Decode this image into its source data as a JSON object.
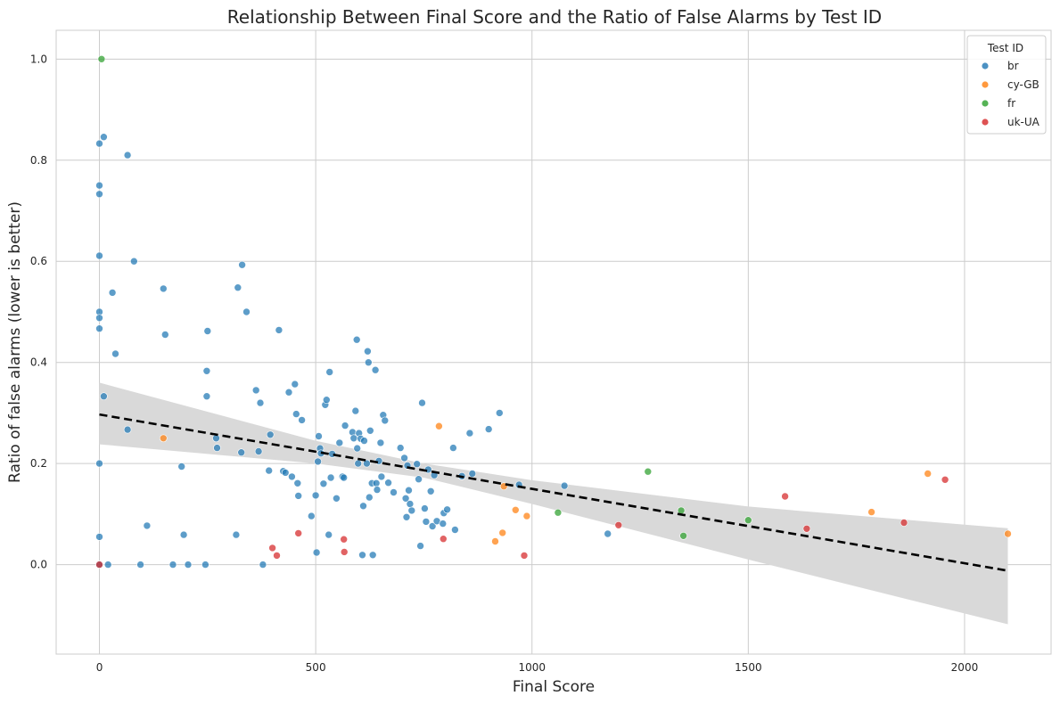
{
  "chart_data": {
    "type": "scatter",
    "title": "Relationship Between Final Score and the Ratio of False Alarms by Test ID",
    "xlabel": "Final Score",
    "ylabel": "Ratio of false alarms (lower is better)",
    "xlim": [
      -100,
      2200
    ],
    "ylim": [
      -0.177,
      1.057
    ],
    "xticks": [
      0,
      500,
      1000,
      1500,
      2000
    ],
    "yticks": [
      0.0,
      0.2,
      0.4,
      0.6,
      0.8,
      1.0
    ],
    "xtick_labels": [
      "0",
      "500",
      "1000",
      "1500",
      "2000"
    ],
    "ytick_labels": [
      "0.0",
      "0.2",
      "0.4",
      "0.6",
      "0.8",
      "1.0"
    ],
    "grid": true,
    "legend": {
      "title": "Test ID",
      "placement": "top-right"
    },
    "regression": {
      "line_color": "#000000",
      "style": "dashed",
      "points": [
        [
          0,
          0.297
        ],
        [
          2100,
          -0.012
        ]
      ],
      "ci_band": [
        {
          "x": 0,
          "lo": 0.238,
          "hi": 0.36
        },
        {
          "x": 500,
          "lo": 0.2,
          "hi": 0.245
        },
        {
          "x": 750,
          "lo": 0.172,
          "hi": 0.2
        },
        {
          "x": 1000,
          "lo": 0.12,
          "hi": 0.167
        },
        {
          "x": 1500,
          "lo": 0.01,
          "hi": 0.115
        },
        {
          "x": 2100,
          "lo": -0.118,
          "hi": 0.072
        }
      ],
      "band_color": "#d9d9d9"
    },
    "series": [
      {
        "name": "br",
        "color": "#1f77b4",
        "points": [
          [
            0,
            0.833
          ],
          [
            10,
            0.846
          ],
          [
            65,
            0.81
          ],
          [
            0,
            0.75
          ],
          [
            0,
            0.733
          ],
          [
            0,
            0.611
          ],
          [
            80,
            0.6
          ],
          [
            30,
            0.538
          ],
          [
            0,
            0.5
          ],
          [
            0,
            0.488
          ],
          [
            0,
            0.467
          ],
          [
            148,
            0.546
          ],
          [
            152,
            0.455
          ],
          [
            37,
            0.417
          ],
          [
            0,
            0.2
          ],
          [
            0,
            0.055
          ],
          [
            0,
            0.0
          ],
          [
            10,
            0.333
          ],
          [
            65,
            0.267
          ],
          [
            20,
            0.0
          ],
          [
            95,
            0.0
          ],
          [
            110,
            0.077
          ],
          [
            170,
            0.0
          ],
          [
            195,
            0.059
          ],
          [
            190,
            0.194
          ],
          [
            205,
            0.0
          ],
          [
            245,
            0.0
          ],
          [
            250,
            0.462
          ],
          [
            248,
            0.383
          ],
          [
            248,
            0.333
          ],
          [
            270,
            0.25
          ],
          [
            272,
            0.231
          ],
          [
            316,
            0.059
          ],
          [
            320,
            0.548
          ],
          [
            330,
            0.593
          ],
          [
            340,
            0.5
          ],
          [
            328,
            0.222
          ],
          [
            362,
            0.345
          ],
          [
            368,
            0.224
          ],
          [
            372,
            0.32
          ],
          [
            378,
            0.0
          ],
          [
            392,
            0.186
          ],
          [
            395,
            0.257
          ],
          [
            415,
            0.464
          ],
          [
            425,
            0.185
          ],
          [
            430,
            0.182
          ],
          [
            438,
            0.341
          ],
          [
            445,
            0.174
          ],
          [
            452,
            0.357
          ],
          [
            455,
            0.298
          ],
          [
            458,
            0.161
          ],
          [
            460,
            0.136
          ],
          [
            468,
            0.286
          ],
          [
            490,
            0.096
          ],
          [
            500,
            0.137
          ],
          [
            502,
            0.024
          ],
          [
            505,
            0.204
          ],
          [
            507,
            0.254
          ],
          [
            510,
            0.23
          ],
          [
            512,
            0.22
          ],
          [
            518,
            0.16
          ],
          [
            522,
            0.316
          ],
          [
            525,
            0.326
          ],
          [
            530,
            0.059
          ],
          [
            532,
            0.381
          ],
          [
            535,
            0.172
          ],
          [
            538,
            0.219
          ],
          [
            548,
            0.131
          ],
          [
            555,
            0.241
          ],
          [
            562,
            0.174
          ],
          [
            565,
            0.172
          ],
          [
            568,
            0.275
          ],
          [
            585,
            0.262
          ],
          [
            588,
            0.25
          ],
          [
            592,
            0.304
          ],
          [
            595,
            0.445
          ],
          [
            596,
            0.23
          ],
          [
            598,
            0.2
          ],
          [
            600,
            0.26
          ],
          [
            604,
            0.249
          ],
          [
            608,
            0.019
          ],
          [
            610,
            0.116
          ],
          [
            612,
            0.245
          ],
          [
            618,
            0.2
          ],
          [
            620,
            0.422
          ],
          [
            622,
            0.4
          ],
          [
            624,
            0.133
          ],
          [
            626,
            0.265
          ],
          [
            630,
            0.161
          ],
          [
            632,
            0.019
          ],
          [
            638,
            0.385
          ],
          [
            640,
            0.161
          ],
          [
            642,
            0.148
          ],
          [
            646,
            0.205
          ],
          [
            650,
            0.241
          ],
          [
            652,
            0.174
          ],
          [
            656,
            0.296
          ],
          [
            660,
            0.285
          ],
          [
            668,
            0.162
          ],
          [
            680,
            0.143
          ],
          [
            696,
            0.231
          ],
          [
            705,
            0.211
          ],
          [
            708,
            0.131
          ],
          [
            710,
            0.094
          ],
          [
            712,
            0.196
          ],
          [
            715,
            0.147
          ],
          [
            718,
            0.12
          ],
          [
            722,
            0.107
          ],
          [
            734,
            0.199
          ],
          [
            738,
            0.169
          ],
          [
            742,
            0.037
          ],
          [
            746,
            0.32
          ],
          [
            752,
            0.111
          ],
          [
            755,
            0.085
          ],
          [
            760,
            0.188
          ],
          [
            766,
            0.145
          ],
          [
            770,
            0.076
          ],
          [
            774,
            0.177
          ],
          [
            780,
            0.086
          ],
          [
            794,
            0.081
          ],
          [
            796,
            0.102
          ],
          [
            804,
            0.109
          ],
          [
            818,
            0.231
          ],
          [
            822,
            0.069
          ],
          [
            838,
            0.175
          ],
          [
            856,
            0.26
          ],
          [
            862,
            0.18
          ],
          [
            900,
            0.268
          ],
          [
            925,
            0.3
          ],
          [
            970,
            0.158
          ],
          [
            1075,
            0.156
          ],
          [
            1175,
            0.061
          ]
        ]
      },
      {
        "name": "cy-GB",
        "color": "#ff7f0e",
        "points": [
          [
            148,
            0.25
          ],
          [
            785,
            0.274
          ],
          [
            915,
            0.046
          ],
          [
            932,
            0.063
          ],
          [
            935,
            0.155
          ],
          [
            962,
            0.108
          ],
          [
            988,
            0.096
          ],
          [
            1785,
            0.104
          ],
          [
            1915,
            0.18
          ],
          [
            2100,
            0.061
          ]
        ]
      },
      {
        "name": "fr",
        "color": "#2ca02c",
        "points": [
          [
            5,
            1.0
          ],
          [
            1060,
            0.103
          ],
          [
            1268,
            0.184
          ],
          [
            1345,
            0.107
          ],
          [
            1350,
            0.057
          ],
          [
            1500,
            0.088
          ]
        ]
      },
      {
        "name": "uk-UA",
        "color": "#d62728",
        "points": [
          [
            0,
            0.0
          ],
          [
            400,
            0.033
          ],
          [
            410,
            0.018
          ],
          [
            460,
            0.062
          ],
          [
            565,
            0.05
          ],
          [
            566,
            0.025
          ],
          [
            795,
            0.051
          ],
          [
            982,
            0.018
          ],
          [
            1200,
            0.078
          ],
          [
            1585,
            0.135
          ],
          [
            1635,
            0.071
          ],
          [
            1860,
            0.083
          ],
          [
            1955,
            0.168
          ]
        ]
      }
    ]
  }
}
